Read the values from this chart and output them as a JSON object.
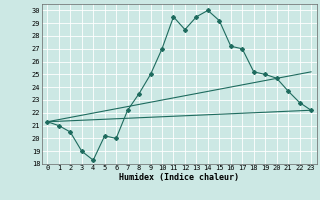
{
  "title": "",
  "xlabel": "Humidex (Indice chaleur)",
  "bg_color": "#cce8e4",
  "line_color": "#1e6b5e",
  "grid_color": "#ffffff",
  "xlim": [
    -0.5,
    23.5
  ],
  "ylim": [
    18,
    30.5
  ],
  "yticks": [
    18,
    19,
    20,
    21,
    22,
    23,
    24,
    25,
    26,
    27,
    28,
    29,
    30
  ],
  "xticks": [
    0,
    1,
    2,
    3,
    4,
    5,
    6,
    7,
    8,
    9,
    10,
    11,
    12,
    13,
    14,
    15,
    16,
    17,
    18,
    19,
    20,
    21,
    22,
    23
  ],
  "line1_x": [
    0,
    1,
    2,
    3,
    4,
    5,
    6,
    7,
    8,
    9,
    10,
    11,
    12,
    13,
    14,
    15,
    16,
    17,
    18,
    19,
    20,
    21,
    22,
    23
  ],
  "line1_y": [
    21.3,
    21.0,
    20.5,
    19.0,
    18.3,
    20.2,
    20.0,
    22.2,
    23.5,
    25.0,
    27.0,
    29.5,
    28.5,
    29.5,
    30.0,
    29.2,
    27.2,
    27.0,
    25.2,
    25.0,
    24.7,
    23.7,
    22.8,
    22.2
  ],
  "line2_x": [
    0,
    23
  ],
  "line2_y": [
    21.3,
    22.2
  ],
  "line3_x": [
    0,
    23
  ],
  "line3_y": [
    21.3,
    25.2
  ],
  "marker_style": "D",
  "marker_size": 2.0,
  "line_width": 0.8,
  "tick_fontsize": 5.0,
  "xlabel_fontsize": 6.0
}
